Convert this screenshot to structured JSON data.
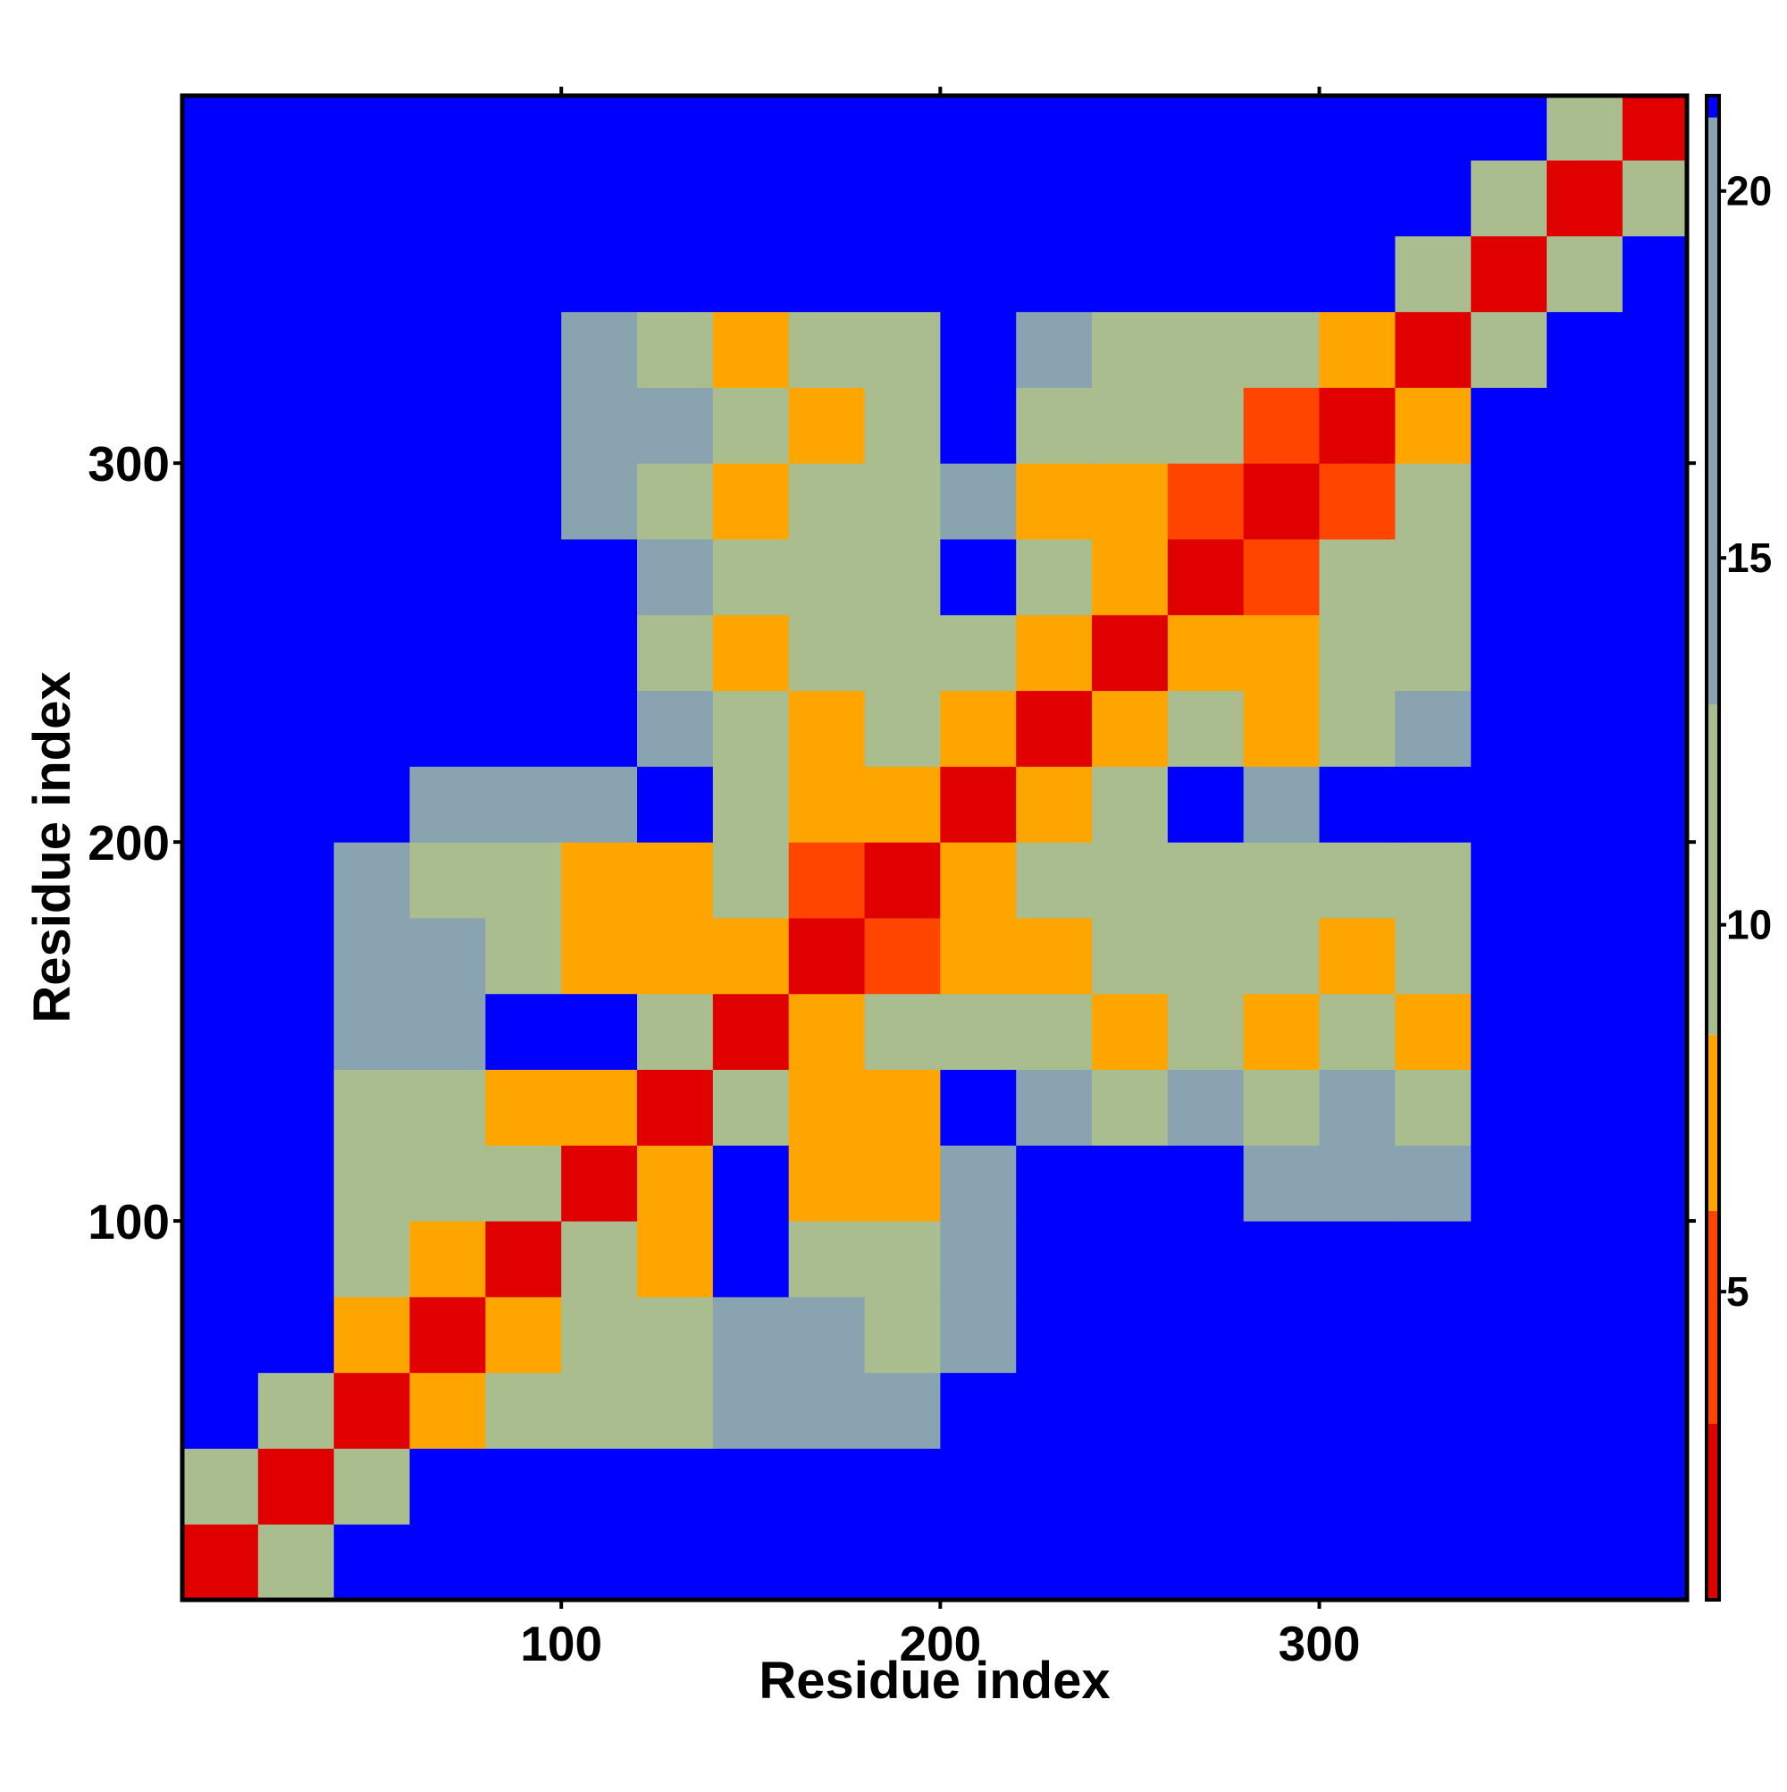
{
  "chart_data": {
    "type": "heatmap",
    "xlabel": "Residue index",
    "ylabel": "Residue index",
    "xlim": [
      0,
      397
    ],
    "ylim": [
      0,
      397
    ],
    "xticks": [
      100,
      200,
      300
    ],
    "yticks": [
      100,
      200,
      300
    ],
    "bins": [
      0,
      20,
      40,
      60,
      80,
      100,
      120,
      140,
      160,
      180,
      200,
      220,
      240,
      260,
      280,
      300,
      320,
      340,
      360,
      380,
      397
    ],
    "z": [
      [
        2,
        12,
        22,
        22,
        22,
        22,
        22,
        22,
        22,
        22,
        22,
        22,
        22,
        22,
        22,
        22,
        22,
        22,
        22,
        22
      ],
      [
        12,
        2,
        12,
        22,
        22,
        22,
        22,
        22,
        22,
        22,
        22,
        22,
        22,
        22,
        22,
        22,
        22,
        22,
        22,
        22
      ],
      [
        22,
        12,
        2,
        8,
        9,
        12,
        12,
        16,
        14,
        13,
        22,
        22,
        22,
        22,
        22,
        22,
        22,
        22,
        22,
        22
      ],
      [
        22,
        22,
        8,
        2,
        8,
        12,
        11,
        16,
        13,
        11,
        15,
        22,
        22,
        22,
        22,
        22,
        22,
        22,
        22,
        22
      ],
      [
        22,
        22,
        9,
        8,
        2,
        9,
        7,
        22,
        10,
        9,
        14,
        22,
        22,
        22,
        22,
        22,
        22,
        22,
        22,
        22
      ],
      [
        22,
        22,
        12,
        12,
        9,
        2,
        7,
        22,
        8,
        7,
        13,
        22,
        22,
        22,
        16,
        15,
        14,
        22,
        22,
        22
      ],
      [
        22,
        22,
        12,
        11,
        7,
        7,
        2,
        9,
        7,
        7,
        22,
        13,
        12,
        14,
        12,
        13,
        12,
        22,
        22,
        22
      ],
      [
        22,
        22,
        16,
        16,
        22,
        22,
        9,
        2,
        8,
        9,
        10,
        10,
        7,
        12,
        8,
        10,
        7,
        22,
        22,
        22
      ],
      [
        22,
        22,
        14,
        13,
        10,
        8,
        7,
        8,
        2,
        6,
        8,
        7,
        9,
        11,
        10,
        8,
        9,
        22,
        22,
        22
      ],
      [
        22,
        22,
        13,
        11,
        9,
        7,
        7,
        9,
        6,
        2,
        7,
        9,
        10,
        12,
        12,
        11,
        11,
        22,
        22,
        22
      ],
      [
        22,
        22,
        22,
        15,
        14,
        13,
        22,
        10,
        8,
        7,
        2,
        7,
        10,
        22,
        14,
        22,
        22,
        22,
        22,
        22
      ],
      [
        22,
        22,
        22,
        22,
        22,
        22,
        13,
        10,
        7,
        9,
        7,
        2,
        7,
        10,
        7,
        11,
        13,
        22,
        22,
        22
      ],
      [
        22,
        22,
        22,
        22,
        22,
        22,
        12,
        7,
        9,
        10,
        10,
        7,
        2,
        7,
        7,
        9,
        12,
        22,
        22,
        22
      ],
      [
        22,
        22,
        22,
        22,
        22,
        22,
        14,
        12,
        11,
        12,
        22,
        10,
        7,
        2,
        6,
        10,
        12,
        22,
        22,
        22
      ],
      [
        22,
        22,
        22,
        22,
        22,
        16,
        12,
        8,
        10,
        12,
        14,
        7,
        7,
        6,
        2,
        6,
        10,
        22,
        22,
        22
      ],
      [
        22,
        22,
        22,
        22,
        22,
        15,
        13,
        10,
        8,
        11,
        22,
        11,
        9,
        10,
        6,
        2,
        7,
        22,
        22,
        22
      ],
      [
        22,
        22,
        22,
        22,
        22,
        14,
        12,
        7,
        9,
        11,
        22,
        13,
        12,
        12,
        10,
        7,
        2,
        11,
        22,
        22
      ],
      [
        22,
        22,
        22,
        22,
        22,
        22,
        22,
        22,
        22,
        22,
        22,
        22,
        22,
        22,
        22,
        22,
        11,
        2,
        12,
        22
      ],
      [
        22,
        22,
        22,
        22,
        22,
        22,
        22,
        22,
        22,
        22,
        22,
        22,
        22,
        22,
        22,
        22,
        22,
        12,
        2,
        12
      ],
      [
        22,
        22,
        22,
        22,
        22,
        22,
        22,
        22,
        22,
        22,
        22,
        22,
        22,
        22,
        22,
        22,
        22,
        22,
        12,
        2
      ]
    ],
    "clim": [
      0.8,
      21.3
    ],
    "cticks": [
      5,
      10,
      15,
      20
    ],
    "color_stops": [
      {
        "value": 0.8,
        "color": "#e00000"
      },
      {
        "value": 3.2,
        "color": "#ff4500"
      },
      {
        "value": 6.1,
        "color": "#ffa500"
      },
      {
        "value": 8.5,
        "color": "#a9bd8e"
      },
      {
        "value": 13,
        "color": "#8aa3b0"
      },
      {
        "value": 21,
        "color": "#0000ff"
      }
    ]
  }
}
